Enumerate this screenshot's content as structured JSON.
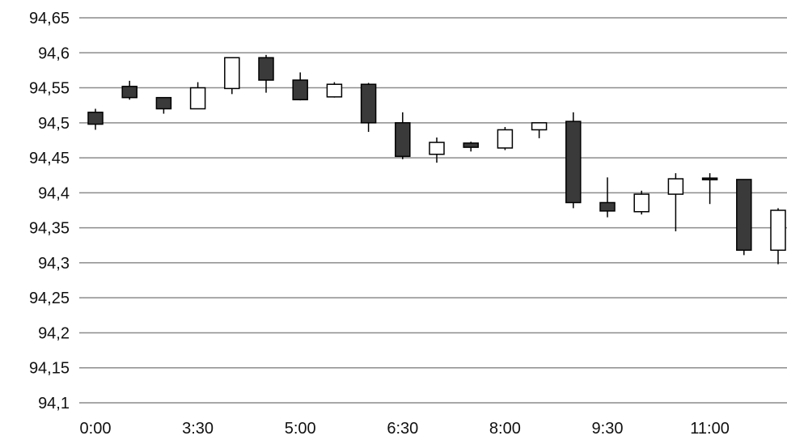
{
  "chart_data": {
    "type": "candlestick",
    "title": "",
    "xlabel": "",
    "ylabel": "",
    "ylim": [
      94.1,
      94.65
    ],
    "y_ticks": [
      "94,65",
      "94,6",
      "94,55",
      "94,5",
      "94,45",
      "94,4",
      "94,35",
      "94,3",
      "94,25",
      "94,2",
      "94,15",
      "94,1"
    ],
    "y_tick_values": [
      94.65,
      94.6,
      94.55,
      94.5,
      94.45,
      94.4,
      94.35,
      94.3,
      94.25,
      94.2,
      94.15,
      94.1
    ],
    "x_tick_labels": [
      "0:00",
      "3:30",
      "5:00",
      "6:30",
      "8:00",
      "9:30",
      "11:00"
    ],
    "x_tick_positions": [
      0,
      3,
      6,
      9,
      12,
      15,
      18
    ],
    "grid": true,
    "legend": "none",
    "colors": {
      "up": "#ffffff",
      "down": "#3a3a3a",
      "grid": "#8c8c8c",
      "wick": "#000000"
    },
    "candles": [
      {
        "open": 94.515,
        "high": 94.52,
        "low": 94.49,
        "close": 94.498
      },
      {
        "open": 94.552,
        "high": 94.56,
        "low": 94.533,
        "close": 94.536
      },
      {
        "open": 94.536,
        "high": 94.536,
        "low": 94.513,
        "close": 94.52
      },
      {
        "open": 94.52,
        "high": 94.558,
        "low": 94.52,
        "close": 94.55
      },
      {
        "open": 94.549,
        "high": 94.593,
        "low": 94.541,
        "close": 94.593
      },
      {
        "open": 94.593,
        "high": 94.597,
        "low": 94.543,
        "close": 94.561
      },
      {
        "open": 94.561,
        "high": 94.572,
        "low": 94.532,
        "close": 94.533
      },
      {
        "open": 94.537,
        "high": 94.558,
        "low": 94.536,
        "close": 94.555
      },
      {
        "open": 94.555,
        "high": 94.557,
        "low": 94.487,
        "close": 94.5
      },
      {
        "open": 94.5,
        "high": 94.515,
        "low": 94.448,
        "close": 94.452
      },
      {
        "open": 94.455,
        "high": 94.479,
        "low": 94.443,
        "close": 94.472
      },
      {
        "open": 94.471,
        "high": 94.473,
        "low": 94.459,
        "close": 94.465
      },
      {
        "open": 94.464,
        "high": 94.494,
        "low": 94.461,
        "close": 94.49
      },
      {
        "open": 94.49,
        "high": 94.5,
        "low": 94.478,
        "close": 94.5
      },
      {
        "open": 94.502,
        "high": 94.515,
        "low": 94.378,
        "close": 94.386
      },
      {
        "open": 94.386,
        "high": 94.422,
        "low": 94.365,
        "close": 94.374
      },
      {
        "open": 94.373,
        "high": 94.403,
        "low": 94.369,
        "close": 94.398
      },
      {
        "open": 94.398,
        "high": 94.428,
        "low": 94.345,
        "close": 94.42
      },
      {
        "open": 94.421,
        "high": 94.428,
        "low": 94.384,
        "close": 94.419
      },
      {
        "open": 94.419,
        "high": 94.419,
        "low": 94.311,
        "close": 94.318
      },
      {
        "open": 94.318,
        "high": 94.378,
        "low": 94.298,
        "close": 94.375
      }
    ]
  }
}
